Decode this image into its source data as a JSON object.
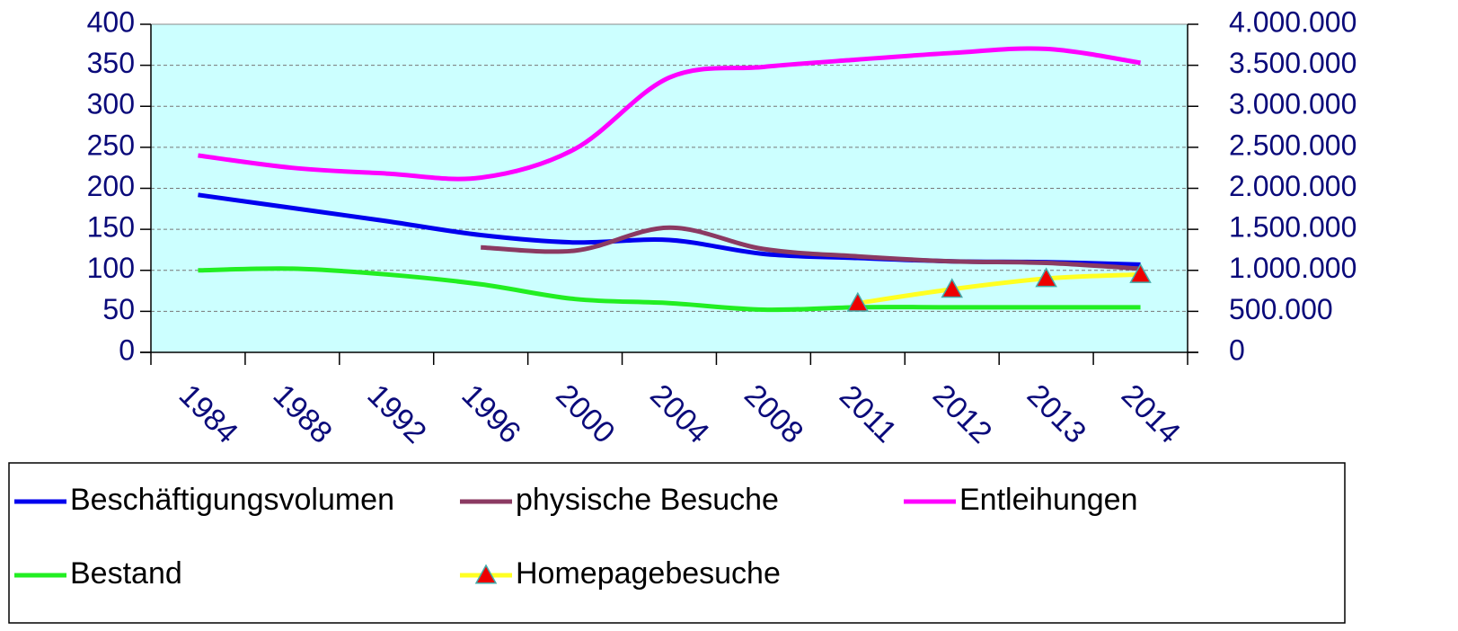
{
  "chart_data": {
    "type": "line",
    "categories": [
      "1984",
      "1988",
      "1992",
      "1996",
      "2000",
      "2004",
      "2008",
      "2011",
      "2012",
      "2013",
      "2014"
    ],
    "series": [
      {
        "name": "Beschäftigungsvolumen",
        "color": "#0000ee",
        "values": [
          192,
          176,
          160,
          143,
          134,
          137,
          120,
          115,
          111,
          110,
          107
        ]
      },
      {
        "name": "physische Besuche",
        "color": "#8b3a62",
        "values": [
          null,
          null,
          null,
          128,
          124,
          152,
          126,
          117,
          111,
          109,
          102
        ]
      },
      {
        "name": "Entleihungen",
        "color": "#ff00ff",
        "axis": "y2",
        "values": [
          2400000,
          2250000,
          2180000,
          2130000,
          2480000,
          3350000,
          3480000,
          3570000,
          3650000,
          3700000,
          3530000
        ]
      },
      {
        "name": "Bestand",
        "color": "#22ee22",
        "values": [
          100,
          102,
          95,
          83,
          65,
          60,
          52,
          55,
          55,
          55,
          55
        ]
      },
      {
        "name": "Homepagebesuche",
        "color": "#ffff22",
        "marker": "triangle",
        "marker_color": "#ee0000",
        "values": [
          null,
          null,
          null,
          null,
          null,
          null,
          null,
          60,
          77,
          90,
          95
        ]
      }
    ],
    "ylim": [
      0,
      400
    ],
    "yticks": [
      0,
      50,
      100,
      150,
      200,
      250,
      300,
      350,
      400
    ],
    "y2lim": [
      0,
      4000000
    ],
    "y2ticks": [
      0,
      {
        "value": 500000,
        "label": "500.000"
      },
      {
        "value": 1000000,
        "label": "1.000.000"
      },
      {
        "value": 1500000,
        "label": "1.500.000"
      },
      {
        "value": 2000000,
        "label": "2.000.000"
      },
      {
        "value": 2500000,
        "label": "2.500.000"
      },
      {
        "value": 3000000,
        "label": "3.000.000"
      },
      {
        "value": 3500000,
        "label": "3.500.000"
      },
      {
        "value": 4000000,
        "label": "4.000.000"
      }
    ],
    "grid": true,
    "legend": "bottom",
    "background": "#ccffff"
  }
}
